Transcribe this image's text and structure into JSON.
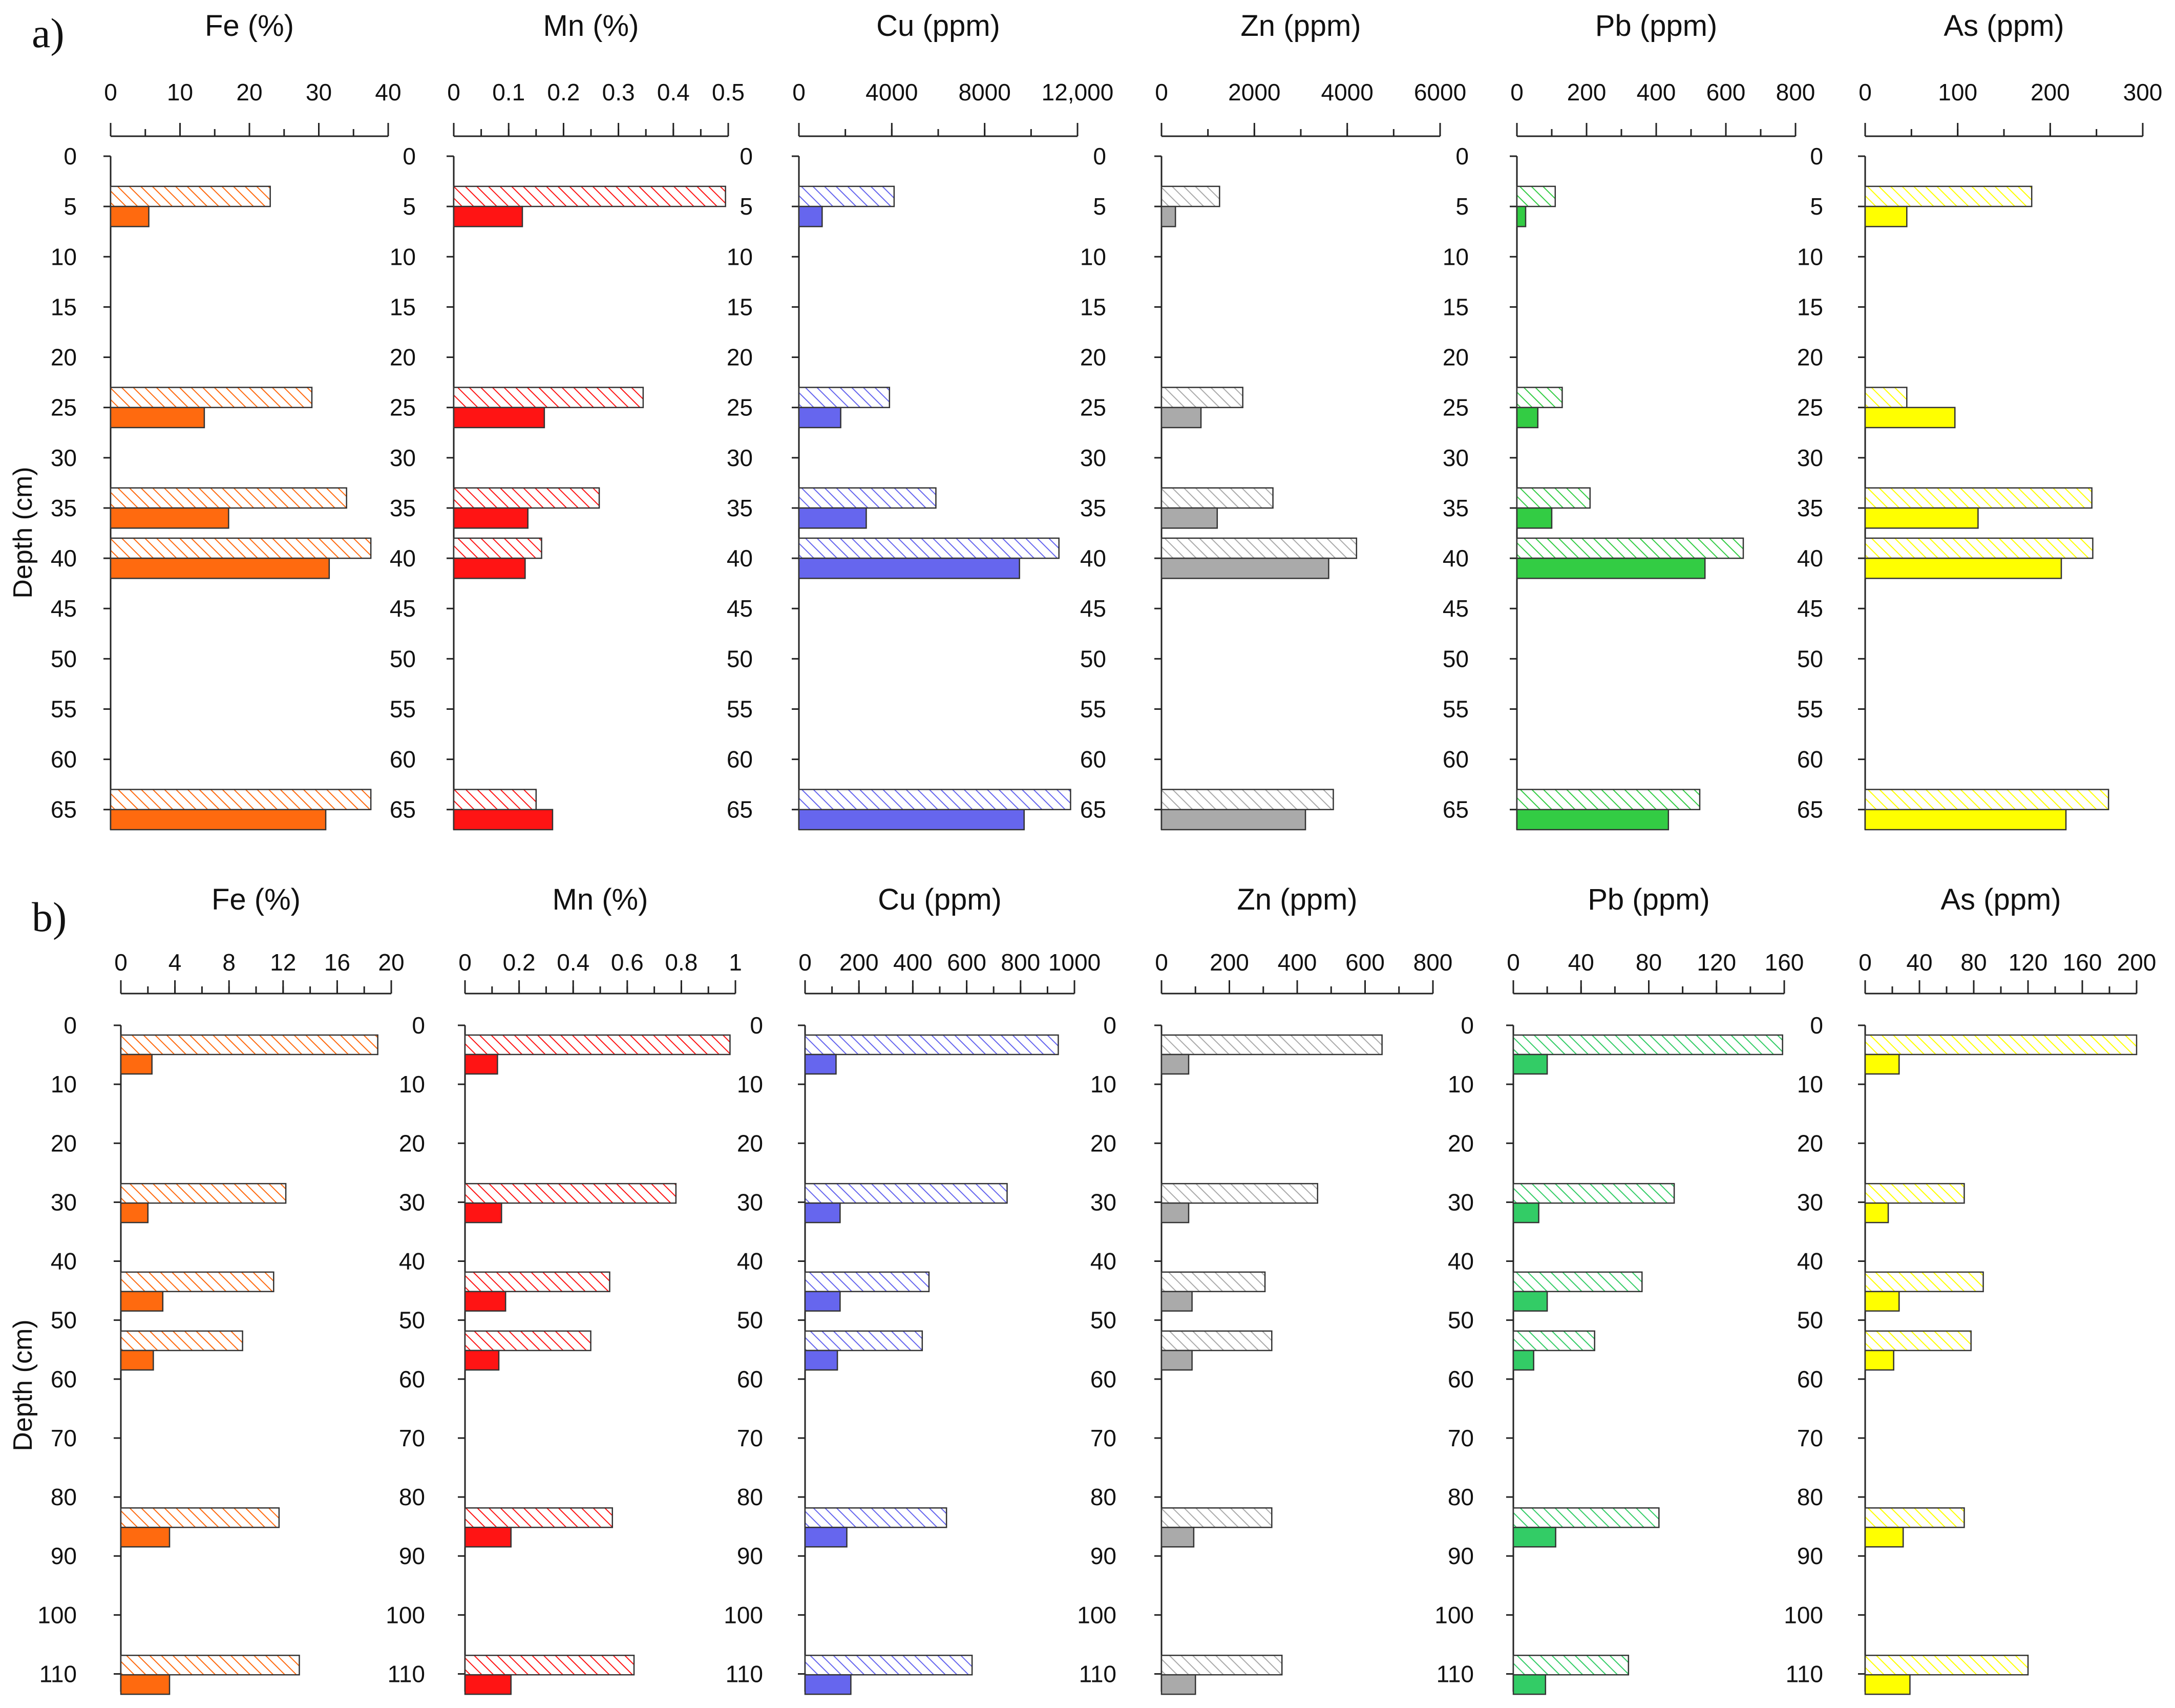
{
  "chart_data": [
    {
      "panel": "a)",
      "type": "bar",
      "orientation": "horizontal",
      "ylabel": "Depth (cm)",
      "depth_ticks": [
        0,
        5,
        10,
        15,
        20,
        25,
        30,
        35,
        40,
        45,
        50,
        55,
        60,
        65
      ],
      "depth_range": [
        0,
        67
      ],
      "bar_thickness": 2,
      "panels": [
        {
          "element": "Fe",
          "title": "Fe (%)",
          "xlim": [
            0,
            40
          ],
          "ticks": [
            0,
            10,
            20,
            30,
            40
          ],
          "tick_labels": [
            "0",
            "10",
            "20",
            "30",
            "40"
          ],
          "minor_step": 5,
          "color": "#ff6a0f",
          "hatched": {
            "depths": [
              4,
              24,
              34,
              39,
              64
            ],
            "values": [
              23,
              29,
              34,
              37.5,
              37.5
            ]
          },
          "solid": {
            "depths": [
              6,
              26,
              36,
              41,
              66
            ],
            "values": [
              5.5,
              13.5,
              17,
              31.5,
              31
            ]
          }
        },
        {
          "element": "Mn",
          "title": "Mn (%)",
          "xlim": [
            0,
            0.5
          ],
          "ticks": [
            0,
            0.1,
            0.2,
            0.3,
            0.4,
            0.5
          ],
          "tick_labels": [
            "0",
            "0.1",
            "0.2",
            "0.3",
            "0.4",
            "0.5"
          ],
          "minor_step": 0.05,
          "color": "#ff1414",
          "hatched": {
            "depths": [
              4,
              24,
              34,
              39,
              64
            ],
            "values": [
              0.495,
              0.345,
              0.265,
              0.16,
              0.15
            ]
          },
          "solid": {
            "depths": [
              6,
              26,
              36,
              41,
              66
            ],
            "values": [
              0.125,
              0.165,
              0.135,
              0.13,
              0.18
            ]
          }
        },
        {
          "element": "Cu",
          "title": "Cu (ppm)",
          "xlim": [
            0,
            12000
          ],
          "ticks": [
            0,
            4000,
            8000,
            12000
          ],
          "tick_labels": [
            "0",
            "4000",
            "8000",
            "12,000"
          ],
          "minor_step": 2000,
          "color": "#6666ee",
          "hatched": {
            "depths": [
              4,
              24,
              34,
              39,
              64
            ],
            "values": [
              4100,
              3900,
              5900,
              11200,
              11700
            ]
          },
          "solid": {
            "depths": [
              6,
              26,
              36,
              41,
              66
            ],
            "values": [
              1000,
              1800,
              2900,
              9500,
              9700
            ]
          }
        },
        {
          "element": "Zn",
          "title": "Zn (ppm)",
          "xlim": [
            0,
            6000
          ],
          "ticks": [
            0,
            2000,
            4000,
            6000
          ],
          "tick_labels": [
            "0",
            "2000",
            "4000",
            "6000"
          ],
          "minor_step": 1000,
          "color": "#aaaaaa",
          "hatched": {
            "depths": [
              4,
              24,
              34,
              39,
              64
            ],
            "values": [
              1250,
              1750,
              2400,
              4200,
              3700
            ]
          },
          "solid": {
            "depths": [
              6,
              26,
              36,
              41,
              66
            ],
            "values": [
              300,
              850,
              1200,
              3600,
              3100
            ]
          }
        },
        {
          "element": "Pb",
          "title": "Pb (ppm)",
          "xlim": [
            0,
            800
          ],
          "ticks": [
            0,
            200,
            400,
            600,
            800
          ],
          "tick_labels": [
            "0",
            "200",
            "400",
            "600",
            "800"
          ],
          "minor_step": 100,
          "color": "#33cc44",
          "hatched": {
            "depths": [
              4,
              24,
              34,
              39,
              64
            ],
            "values": [
              110,
              130,
              210,
              650,
              525
            ]
          },
          "solid": {
            "depths": [
              6,
              26,
              36,
              41,
              66
            ],
            "values": [
              25,
              60,
              100,
              540,
              435
            ]
          }
        },
        {
          "element": "As",
          "title": "As (ppm)",
          "xlim": [
            0,
            300
          ],
          "ticks": [
            0,
            100,
            200,
            300
          ],
          "tick_labels": [
            "0",
            "100",
            "200",
            "300"
          ],
          "minor_step": 50,
          "color": "#ffff00",
          "hatched": {
            "depths": [
              4,
              24,
              34,
              39,
              64
            ],
            "values": [
              180,
              45,
              245,
              246,
              263
            ]
          },
          "solid": {
            "depths": [
              6,
              26,
              36,
              41,
              66
            ],
            "values": [
              45,
              97,
              122,
              212,
              217
            ]
          }
        }
      ]
    },
    {
      "panel": "b)",
      "type": "bar",
      "orientation": "horizontal",
      "ylabel": "Depth (cm)",
      "depth_ticks": [
        0,
        10,
        20,
        30,
        40,
        50,
        60,
        70,
        80,
        90,
        100,
        110
      ],
      "depth_range": [
        0,
        113
      ],
      "bar_thickness": 3.3,
      "panels": [
        {
          "element": "Fe",
          "title": "Fe (%)",
          "xlim": [
            0,
            20
          ],
          "ticks": [
            0,
            4,
            8,
            12,
            16,
            20
          ],
          "tick_labels": [
            "0",
            "4",
            "8",
            "12",
            "16",
            "20"
          ],
          "minor_step": 2,
          "color": "#ff6a0f",
          "hatched": {
            "depths": [
              3.3,
              28.5,
              43.5,
              53.5,
              83.5,
              108.5
            ],
            "values": [
              19,
              12.2,
              11.3,
              9,
              11.7,
              13.2
            ]
          },
          "solid": {
            "depths": [
              6.6,
              31.8,
              46.8,
              56.8,
              86.8,
              111.8
            ],
            "values": [
              2.3,
              2,
              3.1,
              2.4,
              3.6,
              3.6
            ]
          }
        },
        {
          "element": "Mn",
          "title": "Mn (%)",
          "xlim": [
            0,
            1
          ],
          "ticks": [
            0,
            0.2,
            0.4,
            0.6,
            0.8,
            1
          ],
          "tick_labels": [
            "0",
            "0.2",
            "0.4",
            "0.6",
            "0.8",
            "1"
          ],
          "minor_step": 0.1,
          "color": "#ff1414",
          "hatched": {
            "depths": [
              3.3,
              28.5,
              43.5,
              53.5,
              83.5,
              108.5
            ],
            "values": [
              0.98,
              0.78,
              0.535,
              0.465,
              0.545,
              0.625
            ]
          },
          "solid": {
            "depths": [
              6.6,
              31.8,
              46.8,
              56.8,
              86.8,
              111.8
            ],
            "values": [
              0.12,
              0.135,
              0.15,
              0.125,
              0.17,
              0.17
            ]
          }
        },
        {
          "element": "Cu",
          "title": "Cu (ppm)",
          "xlim": [
            0,
            1000
          ],
          "ticks": [
            0,
            200,
            400,
            600,
            800,
            1000
          ],
          "tick_labels": [
            "0",
            "200",
            "400",
            "600",
            "800",
            "1000"
          ],
          "minor_step": 100,
          "color": "#6666ee",
          "hatched": {
            "depths": [
              3.3,
              28.5,
              43.5,
              53.5,
              83.5,
              108.5
            ],
            "values": [
              940,
              750,
              460,
              435,
              525,
              620
            ]
          },
          "solid": {
            "depths": [
              6.6,
              31.8,
              46.8,
              56.8,
              86.8,
              111.8
            ],
            "values": [
              115,
              130,
              130,
              120,
              155,
              170
            ]
          }
        },
        {
          "element": "Zn",
          "title": "Zn (ppm)",
          "xlim": [
            0,
            800
          ],
          "ticks": [
            0,
            200,
            400,
            600,
            800
          ],
          "tick_labels": [
            "0",
            "200",
            "400",
            "600",
            "800"
          ],
          "minor_step": 100,
          "color": "#aaaaaa",
          "hatched": {
            "depths": [
              3.3,
              28.5,
              43.5,
              53.5,
              83.5,
              108.5
            ],
            "values": [
              650,
              460,
              305,
              325,
              325,
              355
            ]
          },
          "solid": {
            "depths": [
              6.6,
              31.8,
              46.8,
              56.8,
              86.8,
              111.8
            ],
            "values": [
              80,
              80,
              90,
              90,
              95,
              100
            ]
          }
        },
        {
          "element": "Pb",
          "title": "Pb (ppm)",
          "xlim": [
            0,
            160
          ],
          "ticks": [
            0,
            40,
            80,
            120,
            160
          ],
          "tick_labels": [
            "0",
            "40",
            "80",
            "120",
            "160"
          ],
          "minor_step": 20,
          "color": "#33cc66",
          "hatched": {
            "depths": [
              3.3,
              28.5,
              43.5,
              53.5,
              83.5,
              108.5
            ],
            "values": [
              159,
              95,
              76,
              48,
              86,
              68
            ]
          },
          "solid": {
            "depths": [
              6.6,
              31.8,
              46.8,
              56.8,
              86.8,
              111.8
            ],
            "values": [
              20,
              15,
              20,
              12,
              25,
              19
            ]
          }
        },
        {
          "element": "As",
          "title": "As (ppm)",
          "xlim": [
            0,
            200
          ],
          "ticks": [
            0,
            40,
            80,
            120,
            160,
            200
          ],
          "tick_labels": [
            "0",
            "40",
            "80",
            "120",
            "160",
            "200"
          ],
          "minor_step": 20,
          "color": "#ffff00",
          "hatched": {
            "depths": [
              3.3,
              28.5,
              43.5,
              53.5,
              83.5,
              108.5
            ],
            "values": [
              200,
              73,
              87,
              78,
              73,
              120
            ]
          },
          "solid": {
            "depths": [
              6.6,
              31.8,
              46.8,
              56.8,
              86.8,
              111.8
            ],
            "values": [
              25,
              17,
              25,
              21,
              28,
              33
            ]
          }
        }
      ]
    }
  ]
}
